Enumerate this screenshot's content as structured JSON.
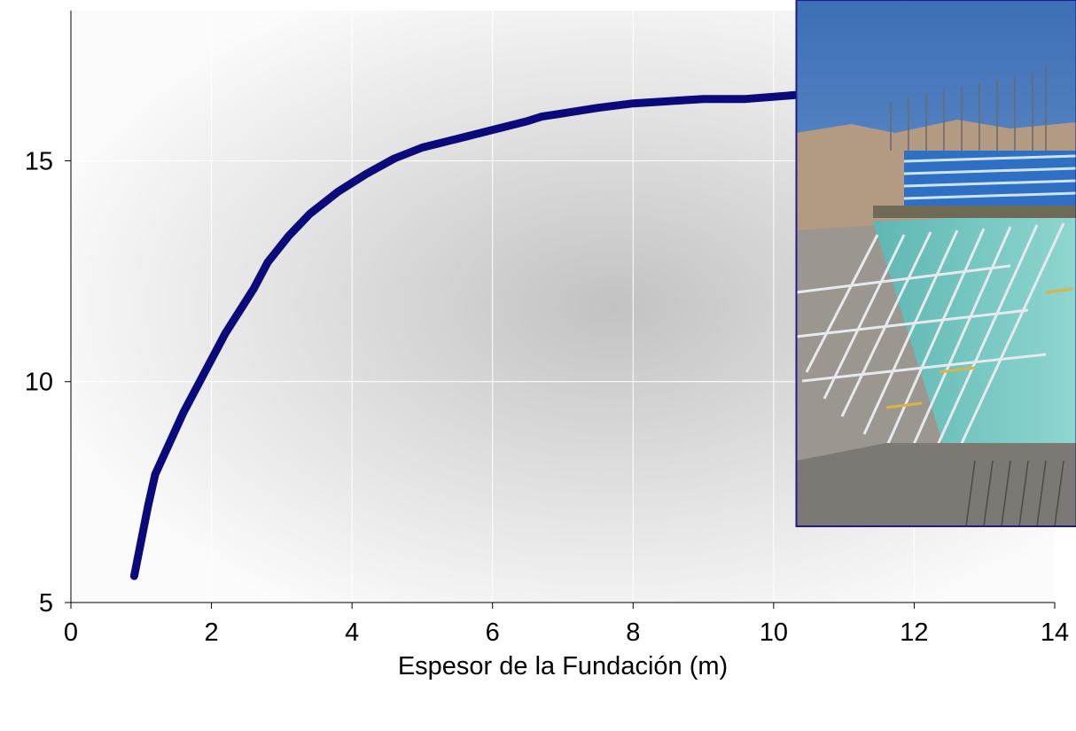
{
  "chart_data": {
    "type": "line",
    "xlabel": "Espesor de la Fundación (m)",
    "ylabel": "",
    "xlim": [
      0,
      14
    ],
    "ylim": [
      5,
      18.4
    ],
    "x_ticks": [
      0,
      2,
      4,
      6,
      8,
      10,
      12,
      14
    ],
    "y_ticks": [
      5,
      10,
      15
    ],
    "grid": true,
    "series_color": "#0a0a7a",
    "series": [
      {
        "x": [
          0.9,
          1.0,
          1.1,
          1.2,
          1.4,
          1.6,
          1.9,
          2.2,
          2.6,
          2.8,
          3.1,
          3.4,
          3.8,
          4.2,
          4.6,
          5.0,
          5.5,
          6.0,
          6.5,
          6.7,
          7.1,
          7.5,
          8.0,
          8.5,
          9.0,
          9.6,
          10.4
        ],
        "y": [
          5.6,
          6.4,
          7.2,
          7.9,
          8.6,
          9.3,
          10.2,
          11.1,
          12.1,
          12.7,
          13.3,
          13.8,
          14.3,
          14.7,
          15.05,
          15.3,
          15.5,
          15.7,
          15.9,
          16.0,
          16.1,
          16.2,
          16.3,
          16.35,
          16.4,
          16.4,
          16.5
        ]
      }
    ]
  },
  "photo": {
    "description_icon": "construction-site-photo"
  }
}
